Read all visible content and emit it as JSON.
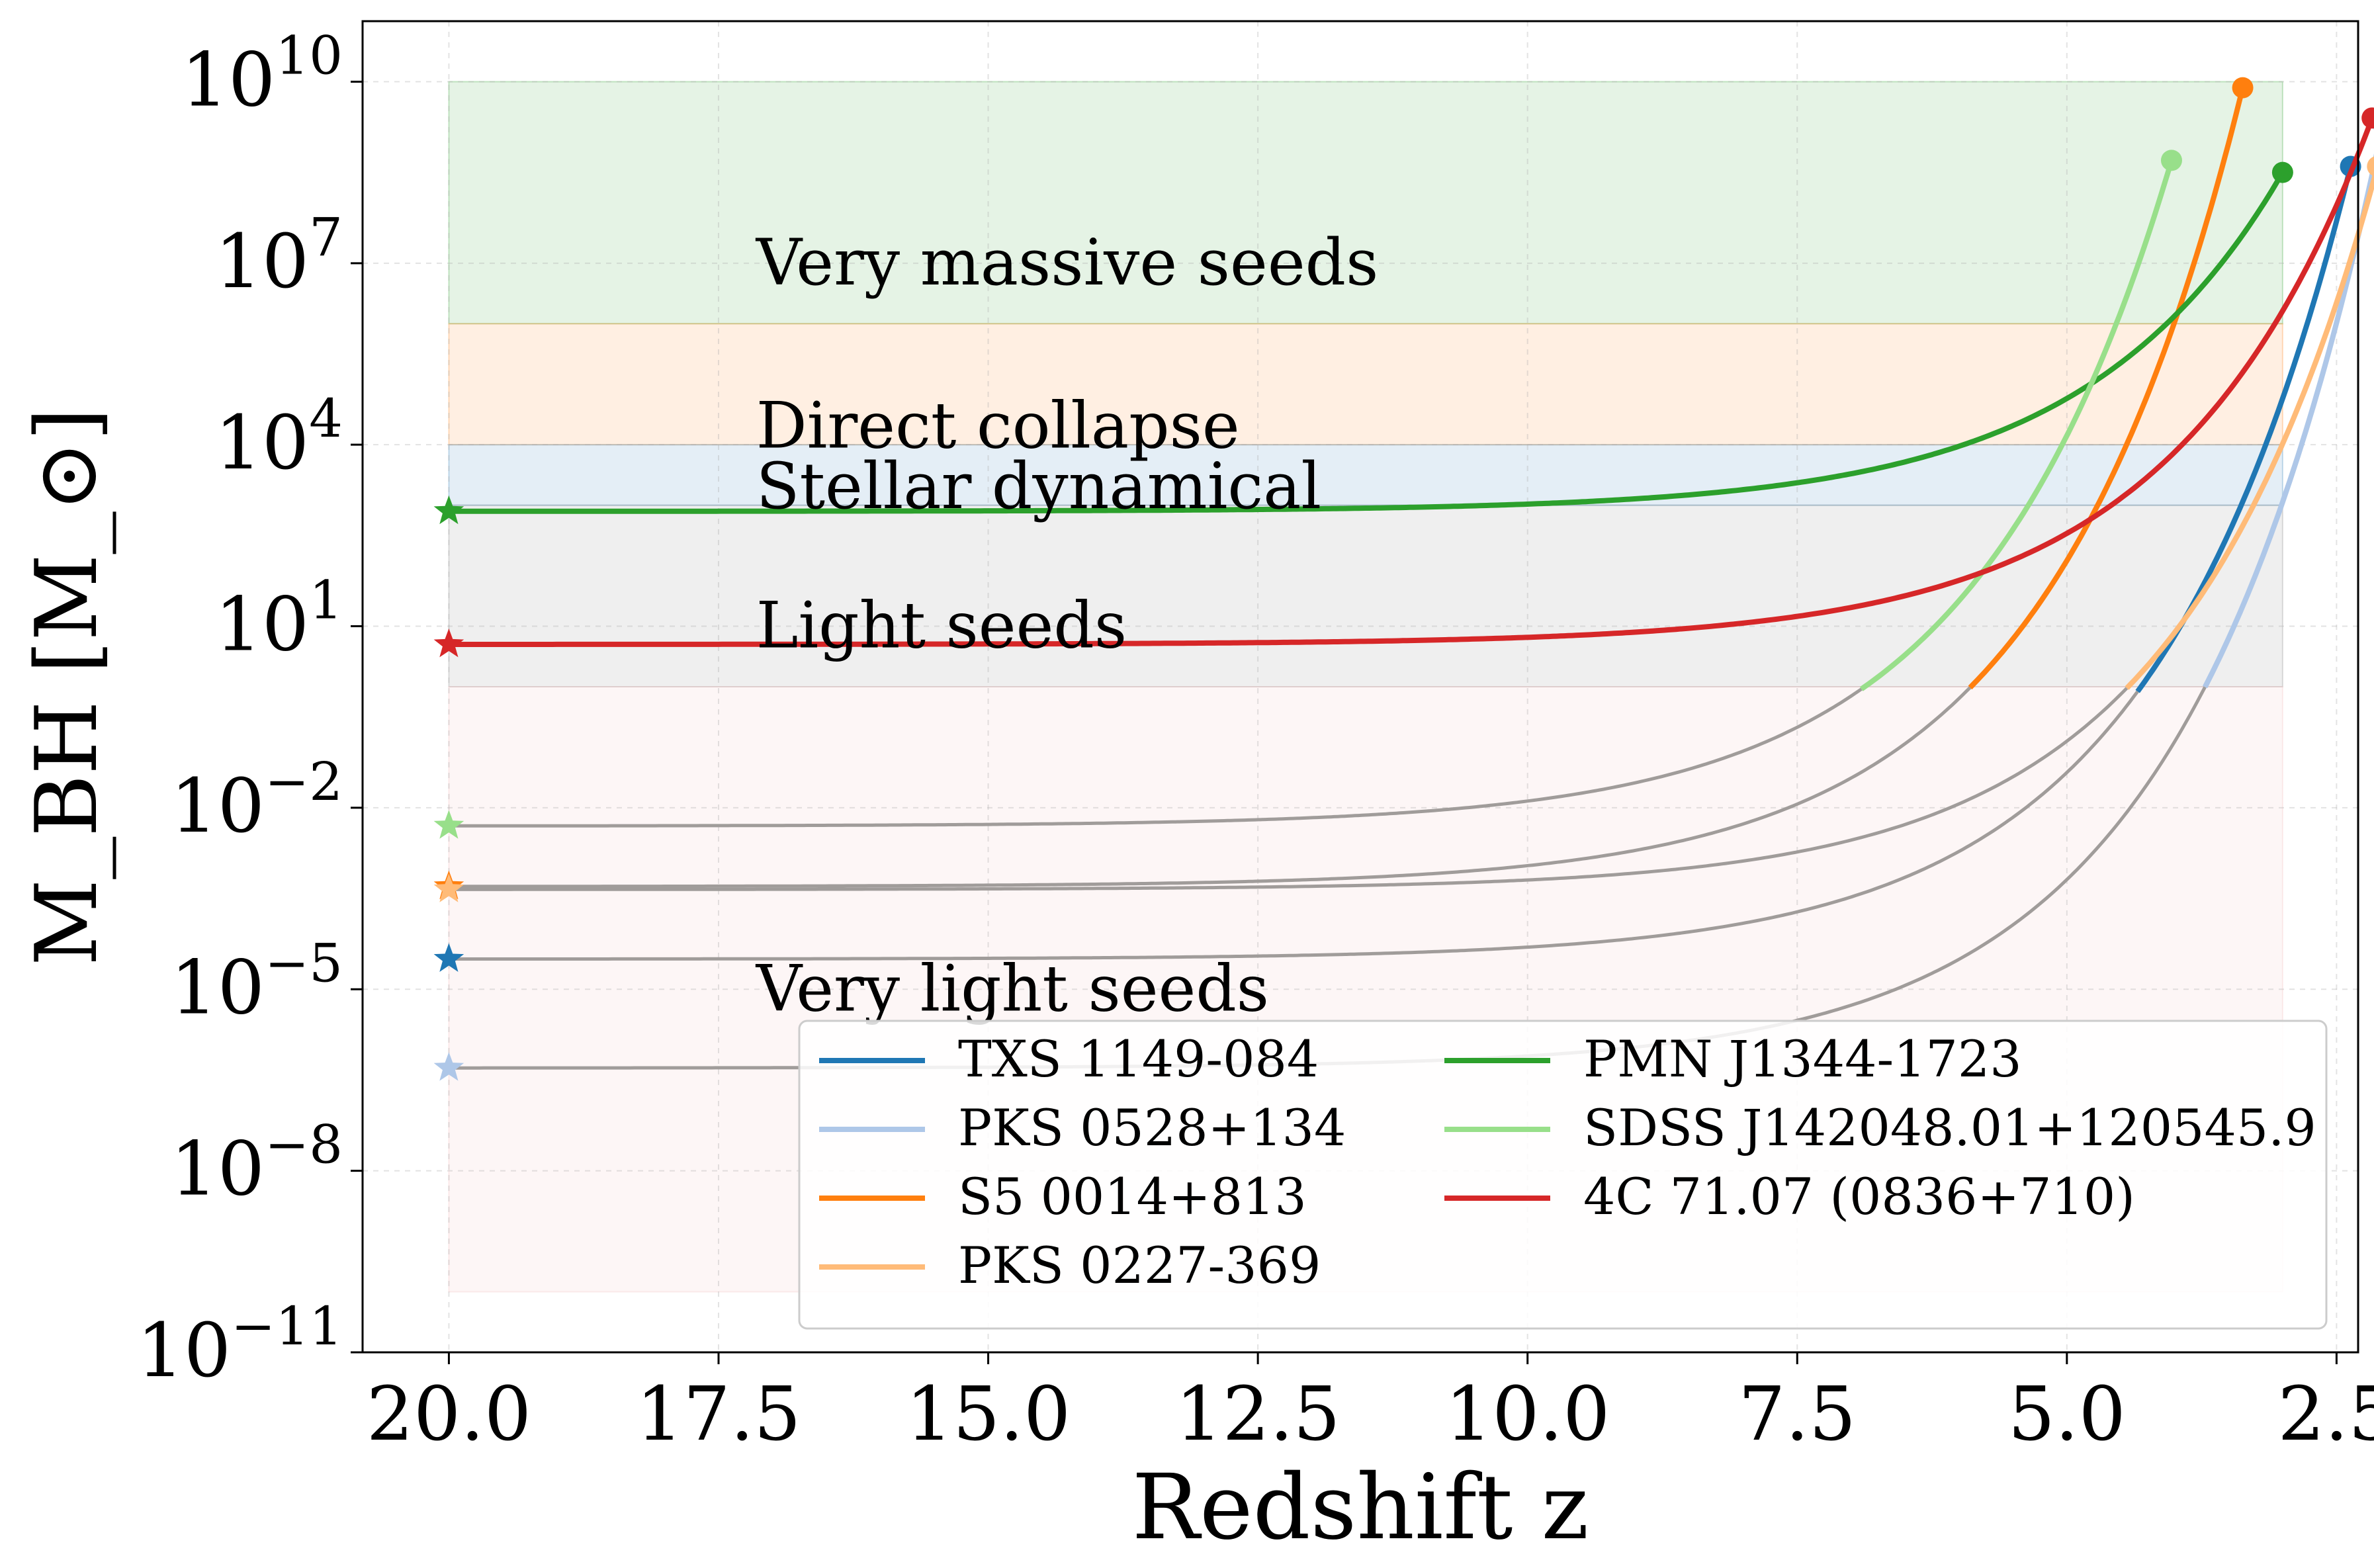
{
  "chart_data": {
    "type": "line",
    "xlabel": "Redshift z",
    "ylabel": "M_BH [M_⊙]",
    "xlim": [
      20.8,
      2.3
    ],
    "ylim_log10": [
      -11,
      11
    ],
    "yscale": "log",
    "grid": true,
    "legend_position": "bottom-right",
    "x_ticks": [
      "20.0",
      "17.5",
      "15.0",
      "12.5",
      "10.0",
      "7.5",
      "5.0",
      "2.5"
    ],
    "x_tick_values": [
      20,
      17.5,
      15,
      12.5,
      10,
      7.5,
      5,
      2.5
    ],
    "y_tick_exponents": [
      10,
      7,
      4,
      1,
      -2,
      -5,
      -8,
      -11
    ],
    "regions": [
      {
        "label": "Very massive seeds",
        "log_low": 6,
        "log_high": 10,
        "color": "#2ca02c"
      },
      {
        "label": "Direct collapse",
        "log_low": 4,
        "log_high": 6,
        "color": "#ff7f0e"
      },
      {
        "label": "Stellar dynamical",
        "log_low": 3,
        "log_high": 4,
        "color": "#1f77b4"
      },
      {
        "label": "Light seeds",
        "log_low": 0,
        "log_high": 3,
        "color": "#7f7f7f"
      },
      {
        "label": "Very light seeds",
        "log_low": -10,
        "log_high": 0,
        "color": "#f2b6b6"
      }
    ],
    "region_x_range": [
      20,
      3.0
    ],
    "series": [
      {
        "name": "TXS 1149-084",
        "color": "#1f77b4",
        "seed_z": 20,
        "seed_logM": -4.5,
        "final_z": 2.37,
        "final_logM": 8.6
      },
      {
        "name": "PKS 0528+134",
        "color": "#aec7e8",
        "seed_z": 20,
        "seed_logM": -6.3,
        "final_z": 2.07,
        "final_logM": 9.3
      },
      {
        "name": "S5 0014+813",
        "color": "#ff7f0e",
        "seed_z": 20,
        "seed_logM": -3.3,
        "final_z": 3.37,
        "final_logM": 9.9
      },
      {
        "name": "PKS 0227-369",
        "color": "#ffbb78",
        "seed_z": 20,
        "seed_logM": -3.35,
        "final_z": 2.12,
        "final_logM": 8.6
      },
      {
        "name": "PMN J1344-1723",
        "color": "#2ca02c",
        "seed_z": 20,
        "seed_logM": 2.9,
        "final_z": 3.0,
        "final_logM": 8.5
      },
      {
        "name": "SDSS J142048.01+120545.9",
        "color": "#98df8a",
        "seed_z": 20,
        "seed_logM": -2.3,
        "final_z": 4.03,
        "final_logM": 8.7
      },
      {
        "name": "4C 71.07 (0836+710)",
        "color": "#d62728",
        "seed_z": 20,
        "seed_logM": 0.7,
        "final_z": 2.17,
        "final_logM": 9.4
      }
    ]
  }
}
